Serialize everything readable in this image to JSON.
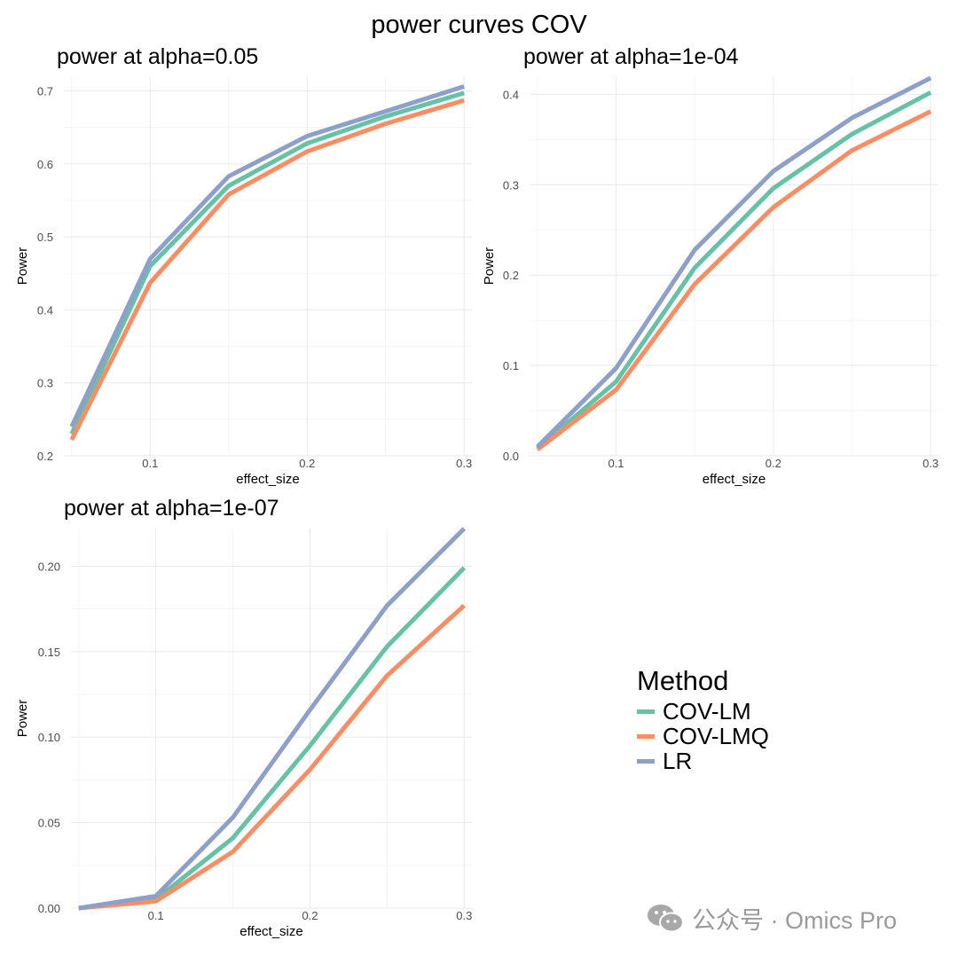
{
  "suptitle": "power curves COV",
  "legend": {
    "title": "Method",
    "items": [
      {
        "label": "COV-LM",
        "color": "#66c2a5"
      },
      {
        "label": "COV-LMQ",
        "color": "#fc8d62"
      },
      {
        "label": "LR",
        "color": "#8da0cb"
      }
    ]
  },
  "watermark": {
    "text": "公众号 · Omics Pro",
    "icon": "wechat-icon"
  },
  "chart_data": [
    {
      "type": "line",
      "title": "power at alpha=0.05",
      "xlabel": "effect_size",
      "ylabel": "Power",
      "x": [
        0.05,
        0.1,
        0.15,
        0.2,
        0.25,
        0.3
      ],
      "xlim": [
        0.045,
        0.305
      ],
      "ylim": [
        0.2,
        0.72
      ],
      "xticks": [
        "0.1",
        "0.2",
        "0.3"
      ],
      "yticks": [
        "0.2",
        "0.3",
        "0.4",
        "0.5",
        "0.6",
        "0.7"
      ],
      "grid": true,
      "series": [
        {
          "name": "COV-LM",
          "color": "#66c2a5",
          "values": [
            0.23,
            0.46,
            0.57,
            0.628,
            0.665,
            0.697
          ]
        },
        {
          "name": "COV-LMQ",
          "color": "#fc8d62",
          "values": [
            0.222,
            0.437,
            0.558,
            0.617,
            0.655,
            0.687
          ]
        },
        {
          "name": "LR",
          "color": "#8da0cb",
          "values": [
            0.24,
            0.47,
            0.583,
            0.638,
            0.672,
            0.706
          ]
        }
      ]
    },
    {
      "type": "line",
      "title": "power at alpha=1e-04",
      "xlabel": "effect_size",
      "ylabel": "Power",
      "x": [
        0.05,
        0.1,
        0.15,
        0.2,
        0.25,
        0.3
      ],
      "xlim": [
        0.045,
        0.305
      ],
      "ylim": [
        0.0,
        0.42
      ],
      "xticks": [
        "0.1",
        "0.2",
        "0.3"
      ],
      "yticks": [
        "0.0",
        "0.1",
        "0.2",
        "0.3",
        "0.4"
      ],
      "grid": true,
      "series": [
        {
          "name": "COV-LM",
          "color": "#66c2a5",
          "values": [
            0.008,
            0.082,
            0.208,
            0.296,
            0.356,
            0.402
          ]
        },
        {
          "name": "COV-LMQ",
          "color": "#fc8d62",
          "values": [
            0.007,
            0.073,
            0.19,
            0.275,
            0.338,
            0.381
          ]
        },
        {
          "name": "LR",
          "color": "#8da0cb",
          "values": [
            0.01,
            0.097,
            0.228,
            0.315,
            0.374,
            0.418
          ]
        }
      ]
    },
    {
      "type": "line",
      "title": "power at alpha=1e-07",
      "xlabel": "effect_size",
      "ylabel": "Power",
      "x": [
        0.05,
        0.1,
        0.15,
        0.2,
        0.25,
        0.3
      ],
      "xlim": [
        0.045,
        0.305
      ],
      "ylim": [
        0.0,
        0.222
      ],
      "xticks": [
        "0.1",
        "0.2",
        "0.3"
      ],
      "yticks": [
        "0.00",
        "0.05",
        "0.10",
        "0.15",
        "0.20"
      ],
      "grid": true,
      "series": [
        {
          "name": "COV-LM",
          "color": "#66c2a5",
          "values": [
            0.0,
            0.005,
            0.041,
            0.095,
            0.153,
            0.199
          ]
        },
        {
          "name": "COV-LMQ",
          "color": "#fc8d62",
          "values": [
            0.0,
            0.004,
            0.033,
            0.081,
            0.136,
            0.177
          ]
        },
        {
          "name": "LR",
          "color": "#8da0cb",
          "values": [
            0.0,
            0.007,
            0.053,
            0.116,
            0.177,
            0.222
          ]
        }
      ]
    }
  ]
}
